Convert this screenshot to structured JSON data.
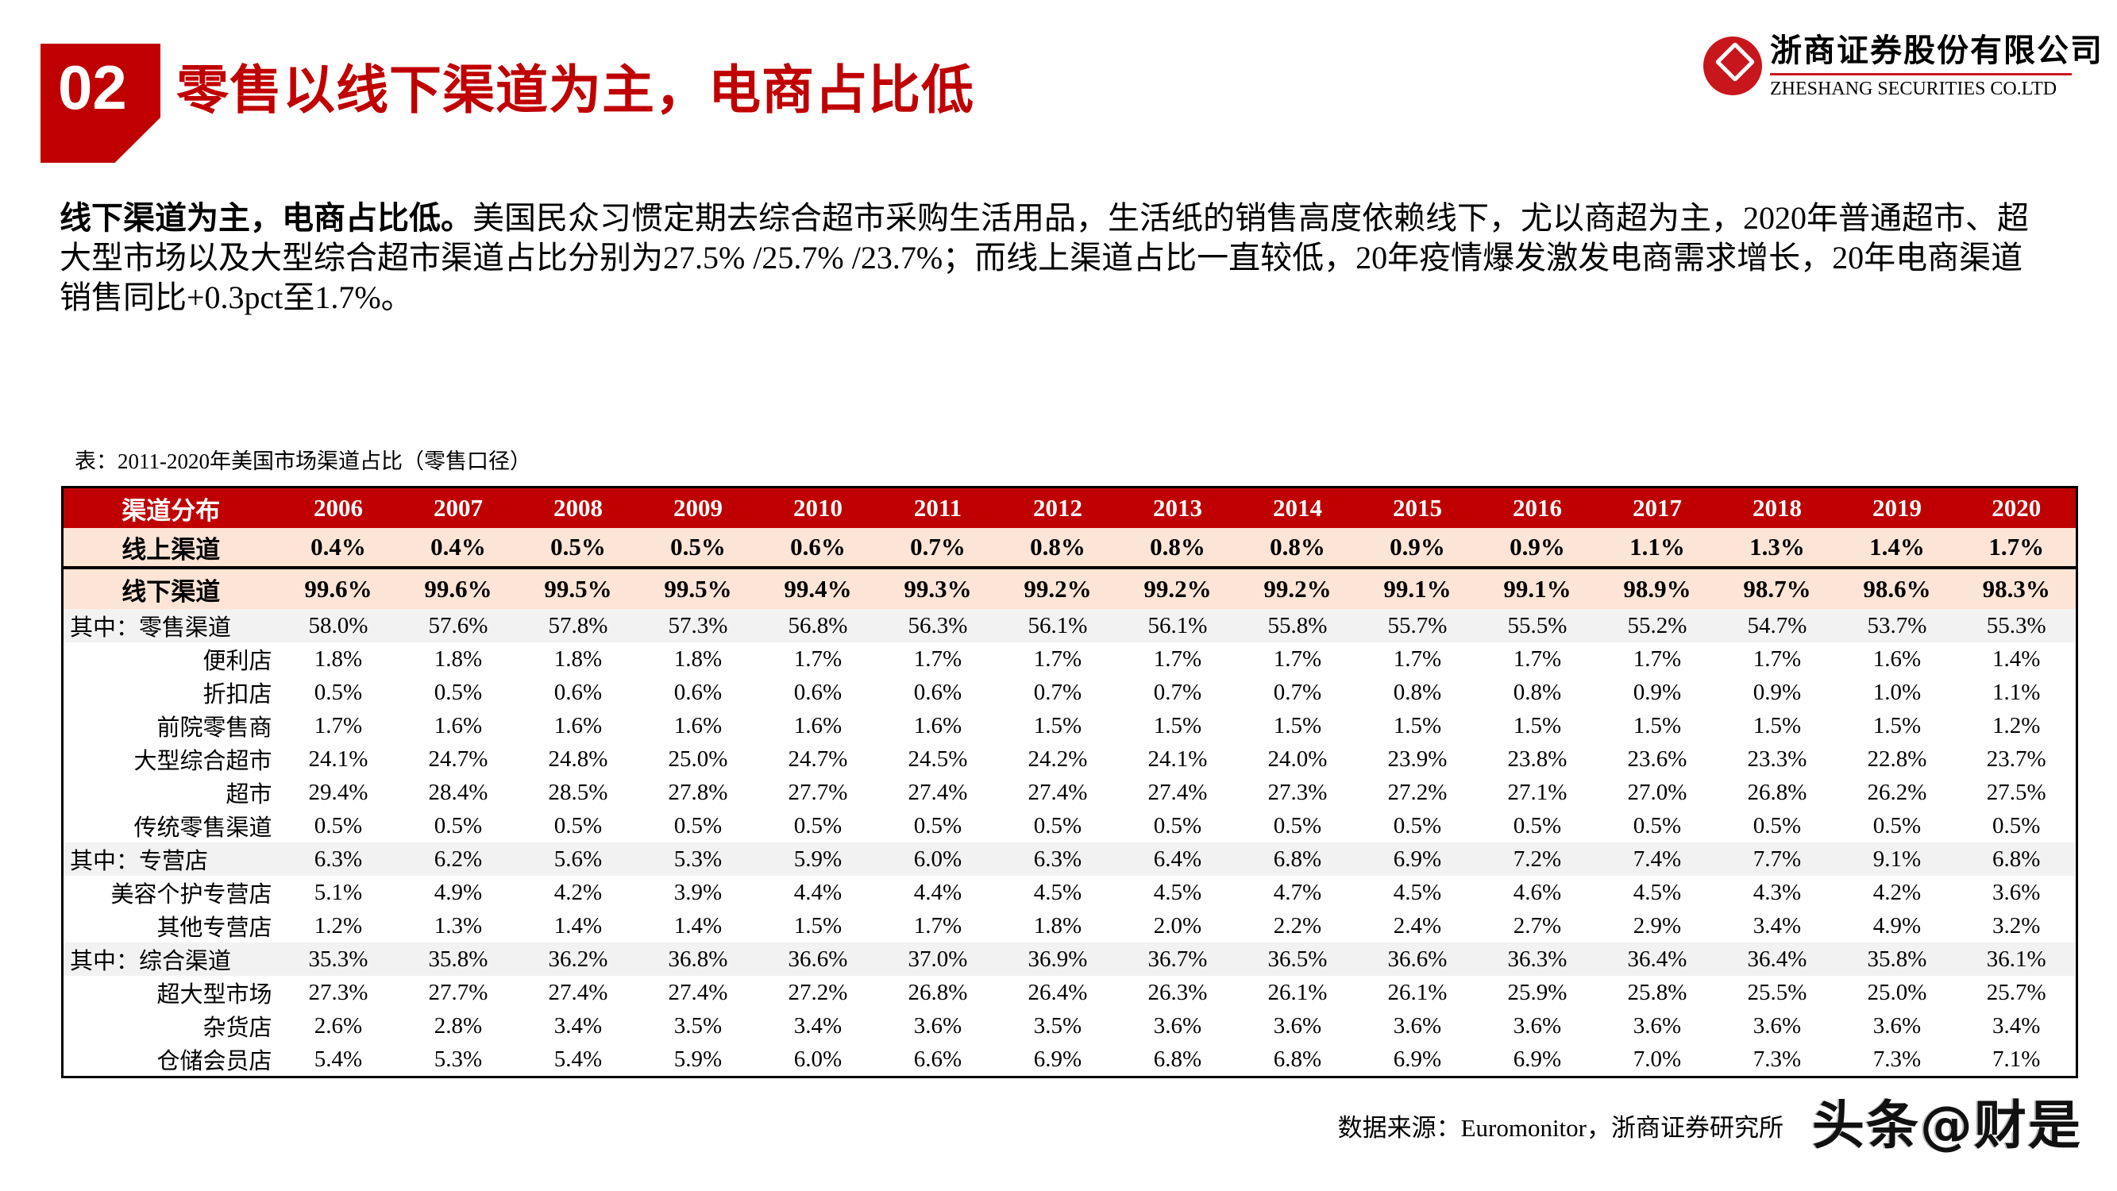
{
  "header": {
    "section_number": "02",
    "title": "零售以线下渠道为主，电商占比低",
    "brand_color": "#c00000"
  },
  "logo": {
    "name_cn": "浙商证券股份有限公司",
    "name_en": "ZHESHANG SECURITIES CO.LTD"
  },
  "body": {
    "lead": "线下渠道为主，电商占比低。",
    "text": "美国民众习惯定期去综合超市采购生活用品，生活纸的销售高度依赖线下，尤以商超为主，2020年普通超市、超大型市场以及大型综合超市渠道占比分别为27.5% /25.7% /23.7%；而线上渠道占比一直较低，20年疫情爆发激发电商需求增长，20年电商渠道销售同比+0.3pct至1.7%。"
  },
  "table": {
    "caption": "表：2011-2020年美国市场渠道占比（零售口径）",
    "header_label": "渠道分布",
    "years": [
      "2006",
      "2007",
      "2008",
      "2009",
      "2010",
      "2011",
      "2012",
      "2013",
      "2014",
      "2015",
      "2016",
      "2017",
      "2018",
      "2019",
      "2020"
    ],
    "rows": [
      {
        "label": "线上渠道",
        "kind": "online",
        "align": "center",
        "values": [
          "0.4%",
          "0.4%",
          "0.5%",
          "0.5%",
          "0.6%",
          "0.7%",
          "0.8%",
          "0.8%",
          "0.8%",
          "0.9%",
          "0.9%",
          "1.1%",
          "1.3%",
          "1.4%",
          "1.7%"
        ]
      },
      {
        "label": "线下渠道",
        "kind": "offline",
        "align": "center",
        "values": [
          "99.6%",
          "99.6%",
          "99.5%",
          "99.5%",
          "99.4%",
          "99.3%",
          "99.2%",
          "99.2%",
          "99.2%",
          "99.1%",
          "99.1%",
          "98.9%",
          "98.7%",
          "98.6%",
          "98.3%"
        ]
      },
      {
        "label": "其中：零售渠道",
        "kind": "sub",
        "align": "left",
        "values": [
          "58.0%",
          "57.6%",
          "57.8%",
          "57.3%",
          "56.8%",
          "56.3%",
          "56.1%",
          "56.1%",
          "55.8%",
          "55.7%",
          "55.5%",
          "55.2%",
          "54.7%",
          "53.7%",
          "55.3%"
        ]
      },
      {
        "label": "便利店",
        "kind": "item",
        "align": "right",
        "values": [
          "1.8%",
          "1.8%",
          "1.8%",
          "1.8%",
          "1.7%",
          "1.7%",
          "1.7%",
          "1.7%",
          "1.7%",
          "1.7%",
          "1.7%",
          "1.7%",
          "1.7%",
          "1.6%",
          "1.4%"
        ]
      },
      {
        "label": "折扣店",
        "kind": "item",
        "align": "right",
        "values": [
          "0.5%",
          "0.5%",
          "0.6%",
          "0.6%",
          "0.6%",
          "0.6%",
          "0.7%",
          "0.7%",
          "0.7%",
          "0.8%",
          "0.8%",
          "0.9%",
          "0.9%",
          "1.0%",
          "1.1%"
        ]
      },
      {
        "label": "前院零售商",
        "kind": "item",
        "align": "right",
        "values": [
          "1.7%",
          "1.6%",
          "1.6%",
          "1.6%",
          "1.6%",
          "1.6%",
          "1.5%",
          "1.5%",
          "1.5%",
          "1.5%",
          "1.5%",
          "1.5%",
          "1.5%",
          "1.5%",
          "1.2%"
        ]
      },
      {
        "label": "大型综合超市",
        "kind": "item",
        "align": "right",
        "values": [
          "24.1%",
          "24.7%",
          "24.8%",
          "25.0%",
          "24.7%",
          "24.5%",
          "24.2%",
          "24.1%",
          "24.0%",
          "23.9%",
          "23.8%",
          "23.6%",
          "23.3%",
          "22.8%",
          "23.7%"
        ]
      },
      {
        "label": "超市",
        "kind": "item",
        "align": "right",
        "values": [
          "29.4%",
          "28.4%",
          "28.5%",
          "27.8%",
          "27.7%",
          "27.4%",
          "27.4%",
          "27.4%",
          "27.3%",
          "27.2%",
          "27.1%",
          "27.0%",
          "26.8%",
          "26.2%",
          "27.5%"
        ]
      },
      {
        "label": "传统零售渠道",
        "kind": "item",
        "align": "right",
        "values": [
          "0.5%",
          "0.5%",
          "0.5%",
          "0.5%",
          "0.5%",
          "0.5%",
          "0.5%",
          "0.5%",
          "0.5%",
          "0.5%",
          "0.5%",
          "0.5%",
          "0.5%",
          "0.5%",
          "0.5%"
        ]
      },
      {
        "label": "其中：专营店",
        "kind": "sub",
        "align": "left",
        "values": [
          "6.3%",
          "6.2%",
          "5.6%",
          "5.3%",
          "5.9%",
          "6.0%",
          "6.3%",
          "6.4%",
          "6.8%",
          "6.9%",
          "7.2%",
          "7.4%",
          "7.7%",
          "9.1%",
          "6.8%"
        ]
      },
      {
        "label": "美容个护专营店",
        "kind": "item",
        "align": "right",
        "values": [
          "5.1%",
          "4.9%",
          "4.2%",
          "3.9%",
          "4.4%",
          "4.4%",
          "4.5%",
          "4.5%",
          "4.7%",
          "4.5%",
          "4.6%",
          "4.5%",
          "4.3%",
          "4.2%",
          "3.6%"
        ]
      },
      {
        "label": "其他专营店",
        "kind": "item",
        "align": "right",
        "values": [
          "1.2%",
          "1.3%",
          "1.4%",
          "1.4%",
          "1.5%",
          "1.7%",
          "1.8%",
          "2.0%",
          "2.2%",
          "2.4%",
          "2.7%",
          "2.9%",
          "3.4%",
          "4.9%",
          "3.2%"
        ]
      },
      {
        "label": "其中：综合渠道",
        "kind": "sub",
        "align": "left",
        "values": [
          "35.3%",
          "35.8%",
          "36.2%",
          "36.8%",
          "36.6%",
          "37.0%",
          "36.9%",
          "36.7%",
          "36.5%",
          "36.6%",
          "36.3%",
          "36.4%",
          "36.4%",
          "35.8%",
          "36.1%"
        ]
      },
      {
        "label": "超大型市场",
        "kind": "item",
        "align": "right",
        "values": [
          "27.3%",
          "27.7%",
          "27.4%",
          "27.4%",
          "27.2%",
          "26.8%",
          "26.4%",
          "26.3%",
          "26.1%",
          "26.1%",
          "25.9%",
          "25.8%",
          "25.5%",
          "25.0%",
          "25.7%"
        ]
      },
      {
        "label": "杂货店",
        "kind": "item",
        "align": "right",
        "values": [
          "2.6%",
          "2.8%",
          "3.4%",
          "3.5%",
          "3.4%",
          "3.6%",
          "3.5%",
          "3.6%",
          "3.6%",
          "3.6%",
          "3.6%",
          "3.6%",
          "3.6%",
          "3.6%",
          "3.4%"
        ]
      },
      {
        "label": "仓储会员店",
        "kind": "item",
        "align": "right",
        "values": [
          "5.4%",
          "5.3%",
          "5.4%",
          "5.9%",
          "6.0%",
          "6.6%",
          "6.9%",
          "6.8%",
          "6.8%",
          "6.9%",
          "6.9%",
          "7.0%",
          "7.3%",
          "7.3%",
          "7.1%"
        ]
      }
    ]
  },
  "footer": {
    "source": "数据来源：Euromonitor，浙商证券研究所",
    "watermark": "头条@财是"
  }
}
